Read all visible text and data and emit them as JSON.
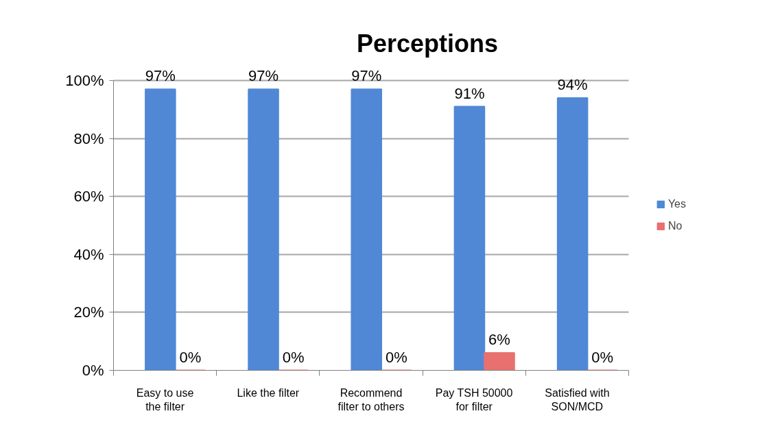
{
  "chart_data": {
    "type": "bar",
    "title": "Perceptions",
    "categories": [
      "Easy to use\nthe filter",
      "Like the filter",
      "Recommend\nfilter to others",
      "Pay TSH 50000\nfor filter",
      "Satisfied with\nSON/MCD"
    ],
    "series": [
      {
        "name": "Yes",
        "color": "#5088d6",
        "values": [
          97,
          97,
          97,
          91,
          94
        ],
        "value_labels": [
          "97%",
          "97%",
          "97%",
          "91%",
          "94%"
        ]
      },
      {
        "name": "No",
        "color": "#e8716f",
        "values": [
          0,
          0,
          0,
          6,
          0
        ],
        "value_labels": [
          "0%",
          "0%",
          "0%",
          "6%",
          "0%"
        ]
      }
    ],
    "ylim": [
      0,
      100
    ],
    "yticks": [
      {
        "value": 0,
        "label": "0%"
      },
      {
        "value": 20,
        "label": "20%"
      },
      {
        "value": 40,
        "label": "40%"
      },
      {
        "value": 60,
        "label": "60%"
      },
      {
        "value": 80,
        "label": "80%"
      },
      {
        "value": 100,
        "label": "100%"
      }
    ],
    "grid": "y",
    "legend": "right"
  }
}
